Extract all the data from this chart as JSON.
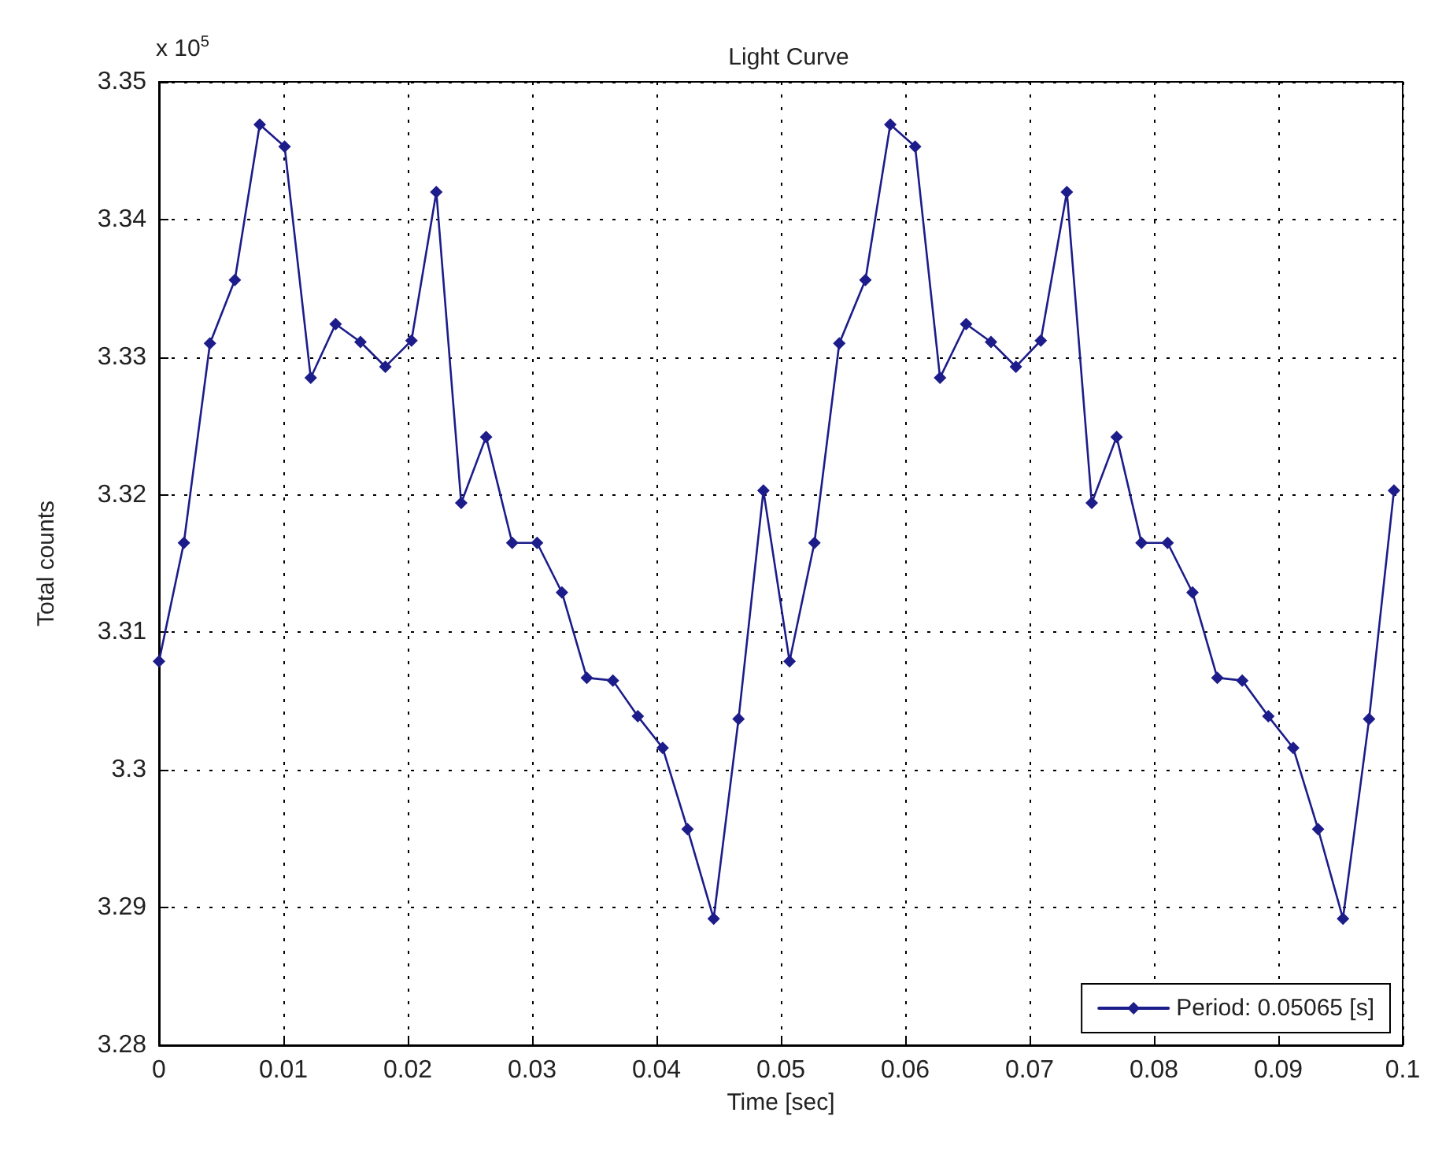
{
  "chart_data": {
    "type": "line",
    "title": "Light Curve",
    "xlabel": "Time [sec]",
    "ylabel": "Total counts",
    "annotations": [
      "x 10$^{5}$"
    ],
    "series": [
      {
        "name": "Period: 0.05065 [s]",
        "color": "#1c1c8a",
        "x": [
          0,
          0.002,
          0.0041,
          0.0061,
          0.0081,
          0.0101,
          0.0122,
          0.0142,
          0.0162,
          0.0182,
          0.0203,
          0.0223,
          0.0243,
          0.0263,
          0.0284,
          0.0304,
          0.0324,
          0.0344,
          0.0365,
          0.0385,
          0.0405,
          0.0425,
          0.0446,
          0.0466,
          0.0486,
          0.0507,
          0.0527,
          0.0547,
          0.0568,
          0.0588,
          0.0608,
          0.0628,
          0.0649,
          0.0669,
          0.0689,
          0.0709,
          0.073,
          0.075,
          0.077,
          0.079,
          0.0811,
          0.0831,
          0.0851,
          0.0871,
          0.0892,
          0.0912,
          0.0932,
          0.0952,
          0.0973,
          0.0993
        ],
        "values": [
          3.3079,
          3.3165,
          3.331,
          3.3356,
          3.3469,
          3.3453,
          3.3285,
          3.3324,
          3.3311,
          3.3293,
          3.3312,
          3.342,
          3.3194,
          3.3242,
          3.3165,
          3.3165,
          3.3129,
          3.3067,
          3.3065,
          3.3039,
          3.3016,
          3.2957,
          3.2892,
          3.3037,
          3.3203,
          3.3079,
          3.3165,
          3.331,
          3.3356,
          3.3469,
          3.3453,
          3.3285,
          3.3324,
          3.3311,
          3.3293,
          3.3312,
          3.342,
          3.3194,
          3.3242,
          3.3165,
          3.3165,
          3.3129,
          3.3067,
          3.3065,
          3.3039,
          3.3016,
          3.2957,
          3.2892,
          3.3037,
          3.3203
        ]
      }
    ],
    "xlim": [
      0,
      0.1
    ],
    "xticks": [
      0,
      0.01,
      0.02,
      0.03,
      0.04,
      0.05,
      0.06,
      0.07,
      0.08,
      0.09,
      0.1
    ],
    "ylim": [
      3.28,
      3.35
    ],
    "yticks": [
      3.28,
      3.29,
      3.3,
      3.31,
      3.32,
      3.33,
      3.34,
      3.35
    ],
    "grid": true,
    "legend": "bottom right",
    "marker": "diamond",
    "line_style": "solid"
  }
}
